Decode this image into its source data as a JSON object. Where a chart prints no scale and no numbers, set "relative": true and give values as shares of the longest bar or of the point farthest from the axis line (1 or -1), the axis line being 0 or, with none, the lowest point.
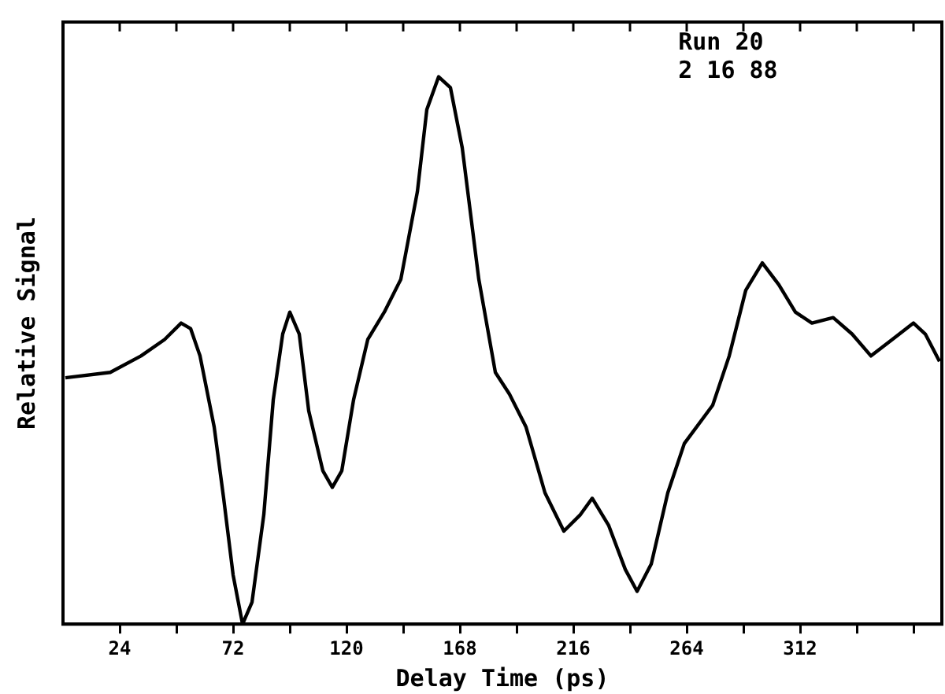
{
  "chart_data": {
    "type": "line",
    "xlabel": "Delay Time (ps)",
    "ylabel": "Relative Signal",
    "relative": true,
    "annotations": [
      "Run 20",
      "2 16 88"
    ],
    "xlim": [
      0,
      372
    ],
    "xticks": [
      24,
      {
        "value": 48,
        "label": null
      },
      72,
      {
        "value": 96,
        "label": null
      },
      120,
      {
        "value": 144,
        "label": null
      },
      168,
      {
        "value": 192,
        "label": null
      },
      216,
      {
        "value": 240,
        "label": null
      },
      264,
      {
        "value": 288,
        "label": null
      },
      312,
      {
        "value": 336,
        "label": null
      },
      {
        "value": 360,
        "label": null
      }
    ],
    "grid": false,
    "marker": "none",
    "line_style": "solid",
    "series": [
      {
        "color": "#000000",
        "x": [
          1,
          20,
          33,
          43,
          50,
          54,
          58,
          64,
          68,
          72,
          76,
          80,
          85,
          89,
          93,
          96,
          100,
          104,
          110,
          114,
          118,
          123,
          129,
          136,
          143,
          150,
          154,
          159,
          164,
          169,
          176,
          183,
          189,
          196,
          204,
          212,
          219,
          224,
          231,
          238,
          243,
          249,
          256,
          263,
          275,
          282,
          289,
          296,
          303,
          310,
          317,
          326,
          334,
          342,
          351,
          360,
          365,
          371
        ],
        "values": [
          0.45,
          0.46,
          0.49,
          0.52,
          0.55,
          0.54,
          0.49,
          0.36,
          0.23,
          0.09,
          0,
          0.04,
          0.2,
          0.41,
          0.53,
          0.57,
          0.53,
          0.39,
          0.28,
          0.25,
          0.28,
          0.41,
          0.52,
          0.57,
          0.63,
          0.79,
          0.94,
          1,
          0.98,
          0.87,
          0.63,
          0.46,
          0.42,
          0.36,
          0.24,
          0.17,
          0.2,
          0.23,
          0.18,
          0.1,
          0.06,
          0.11,
          0.24,
          0.33,
          0.4,
          0.49,
          0.61,
          0.66,
          0.62,
          0.57,
          0.55,
          0.56,
          0.53,
          0.49,
          0.52,
          0.55,
          0.53,
          0.48
        ]
      }
    ]
  }
}
